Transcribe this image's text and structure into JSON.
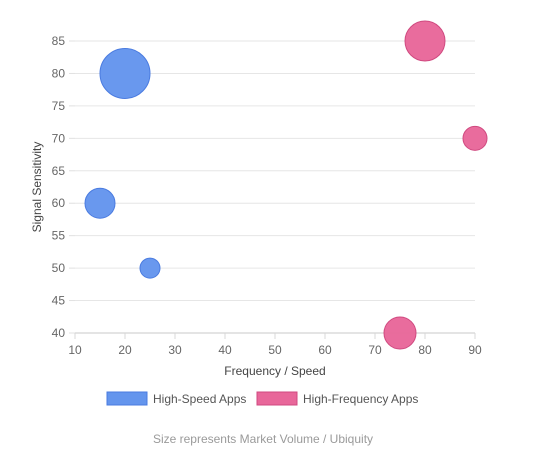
{
  "chart_data": {
    "type": "scatter",
    "variant": "bubble",
    "xlabel": "Frequency / Speed",
    "ylabel": "Signal Sensitivity",
    "xlim": [
      10,
      90
    ],
    "ylim": [
      40,
      85
    ],
    "x_ticks": [
      10,
      20,
      30,
      40,
      50,
      60,
      70,
      80,
      90
    ],
    "y_ticks": [
      40,
      45,
      50,
      55,
      60,
      65,
      70,
      75,
      80,
      85
    ],
    "grid": true,
    "legend_position": "bottom",
    "series": [
      {
        "name": "High-Speed Apps",
        "color": "#6495ED",
        "border": "#4a7be0",
        "points": [
          {
            "x": 20,
            "y": 80,
            "size": 25
          },
          {
            "x": 15,
            "y": 60,
            "size": 15
          },
          {
            "x": 25,
            "y": 50,
            "size": 10
          }
        ]
      },
      {
        "name": "High-Frequency Apps",
        "color": "#E8679A",
        "border": "#d04a80",
        "points": [
          {
            "x": 80,
            "y": 85,
            "size": 20
          },
          {
            "x": 90,
            "y": 70,
            "size": 12
          },
          {
            "x": 75,
            "y": 40,
            "size": 16
          }
        ]
      }
    ],
    "footnote": "Size represents Market Volume / Ubiquity"
  }
}
